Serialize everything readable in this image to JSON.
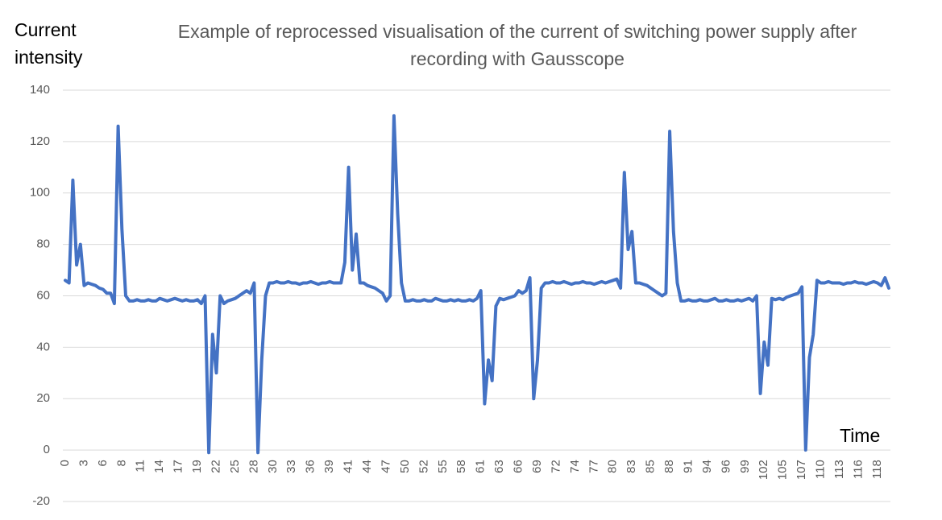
{
  "chart_data": {
    "type": "line",
    "title": "Example of reprocessed visualisation of the current of switching power supply after recording with Gausscope",
    "y_label": "Current intensity",
    "x_label": "Time",
    "categories": [
      "0",
      null,
      null,
      null,
      null,
      "3",
      null,
      null,
      null,
      null,
      "6",
      null,
      null,
      null,
      null,
      "8",
      null,
      null,
      null,
      null,
      "11",
      null,
      null,
      null,
      null,
      "14",
      null,
      null,
      null,
      null,
      "17",
      null,
      null,
      null,
      null,
      "19",
      null,
      null,
      null,
      null,
      "22",
      null,
      null,
      null,
      null,
      "25",
      null,
      null,
      null,
      null,
      "28",
      null,
      null,
      null,
      null,
      "30",
      null,
      null,
      null,
      null,
      "33",
      null,
      null,
      null,
      null,
      "36",
      null,
      null,
      null,
      null,
      "39",
      null,
      null,
      null,
      null,
      "41",
      null,
      null,
      null,
      null,
      "44",
      null,
      null,
      null,
      null,
      "47",
      null,
      null,
      null,
      null,
      "50",
      null,
      null,
      null,
      null,
      "52",
      null,
      null,
      null,
      null,
      "55",
      null,
      null,
      null,
      null,
      "58",
      null,
      null,
      null,
      null,
      "61",
      null,
      null,
      null,
      null,
      "63",
      null,
      null,
      null,
      null,
      "66",
      null,
      null,
      null,
      null,
      "69",
      null,
      null,
      null,
      null,
      "72",
      null,
      null,
      null,
      null,
      "74",
      null,
      null,
      null,
      null,
      "77",
      null,
      null,
      null,
      null,
      "80",
      null,
      null,
      null,
      null,
      "83",
      null,
      null,
      null,
      null,
      "85",
      null,
      null,
      null,
      null,
      "88",
      null,
      null,
      null,
      null,
      "91",
      null,
      null,
      null,
      null,
      "94",
      null,
      null,
      null,
      null,
      "96",
      null,
      null,
      null,
      null,
      "99",
      null,
      null,
      null,
      null,
      "102",
      null,
      null,
      null,
      null,
      "105",
      null,
      null,
      null,
      null,
      "107",
      null,
      null,
      null,
      null,
      "110",
      null,
      null,
      null,
      null,
      "113",
      null,
      null,
      null,
      null,
      "116",
      null,
      null,
      null,
      null,
      "118",
      null,
      null,
      null
    ],
    "series": [
      {
        "name": "Current",
        "color": "#4472c4",
        "values": [
          66,
          65,
          105,
          72,
          80,
          64,
          65,
          64.5,
          64,
          63,
          62.5,
          61,
          61,
          57,
          126,
          86,
          60,
          58,
          58,
          58.5,
          58,
          58,
          58.5,
          58,
          58,
          59,
          58.5,
          58,
          58.5,
          59,
          58.5,
          58,
          58.5,
          58,
          58,
          58.5,
          57,
          60,
          -1,
          45,
          30,
          60,
          57,
          58,
          58.5,
          59,
          60,
          61,
          62,
          61,
          65,
          -1,
          35,
          60,
          65,
          65,
          65.5,
          65,
          65,
          65.5,
          65,
          65,
          64.5,
          65,
          65,
          65.5,
          65,
          64.5,
          65,
          65,
          65.5,
          65,
          65,
          65,
          73,
          110,
          70,
          84,
          65,
          65,
          64,
          63.5,
          63,
          62,
          61,
          58,
          60,
          130,
          92,
          65,
          58,
          58,
          58.5,
          58,
          58,
          58.5,
          58,
          58,
          59,
          58.5,
          58,
          58,
          58.5,
          58,
          58.5,
          58,
          58,
          58.5,
          58,
          59,
          62,
          18,
          35,
          27,
          56,
          59,
          58.5,
          59,
          59.5,
          60,
          62,
          61,
          62,
          67,
          20,
          35,
          63,
          65,
          65,
          65.5,
          65,
          65,
          65.5,
          65,
          64.5,
          65,
          65,
          65.5,
          65,
          65,
          64.5,
          65,
          65.5,
          65,
          65.5,
          66,
          66.5,
          63,
          108,
          78,
          85,
          65,
          65,
          64.5,
          64,
          63,
          62,
          61,
          60,
          61,
          124,
          85,
          65,
          58,
          58,
          58.5,
          58,
          58,
          58.5,
          58,
          58,
          58.5,
          59,
          58,
          58,
          58.5,
          58,
          58,
          58.5,
          58,
          58.5,
          59,
          58,
          60,
          22,
          42,
          33,
          59,
          58.5,
          59,
          58.5,
          59.5,
          60,
          60.5,
          61,
          63.5,
          0,
          36,
          45,
          66,
          65,
          65,
          65.5,
          65,
          65,
          65,
          64.5,
          65,
          65,
          65.5,
          65,
          65,
          64.5,
          65,
          65.5,
          65,
          64,
          67,
          63
        ]
      }
    ],
    "ylim": [
      -20,
      140
    ],
    "yticks": [
      -20,
      0,
      20,
      40,
      60,
      80,
      100,
      120,
      140
    ],
    "grid": true
  }
}
